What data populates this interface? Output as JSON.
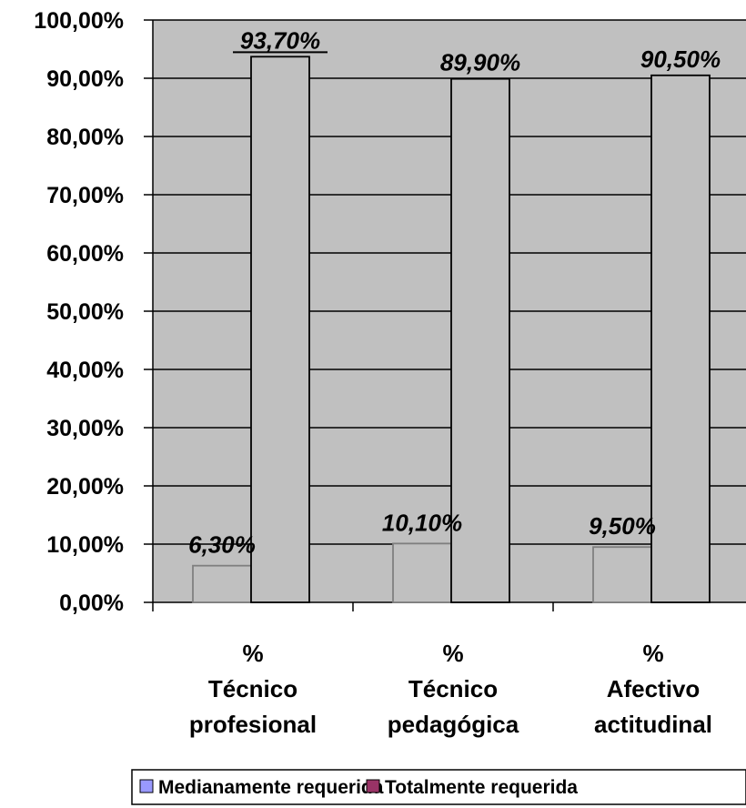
{
  "chart_data": {
    "type": "bar",
    "categories": [
      [
        "%",
        "Técnico",
        "profesional"
      ],
      [
        "%",
        "Técnico",
        "pedagógica"
      ],
      [
        "%",
        "Afectivo",
        "actitudinal"
      ]
    ],
    "series": [
      {
        "name": "Medianamente requerida",
        "values": [
          6.3,
          10.1,
          9.5
        ],
        "labels": [
          "6,30%",
          "10,10%",
          "9,50%"
        ],
        "color": "#9999FF"
      },
      {
        "name": "Totalmente requerida",
        "values": [
          93.7,
          89.9,
          90.5
        ],
        "labels": [
          "93,70%",
          "89,90%",
          "90,50%"
        ],
        "color": "#993366"
      }
    ],
    "yticks": [
      "0,00%",
      "10,00%",
      "20,00%",
      "30,00%",
      "40,00%",
      "50,00%",
      "60,00%",
      "70,00%",
      "80,00%",
      "90,00%",
      "100,00%"
    ],
    "ylim": [
      0,
      100
    ],
    "grid": true,
    "plot_background": "#C0C0C0",
    "bar_fill": "#C0C0C0",
    "legend_position": "bottom"
  }
}
